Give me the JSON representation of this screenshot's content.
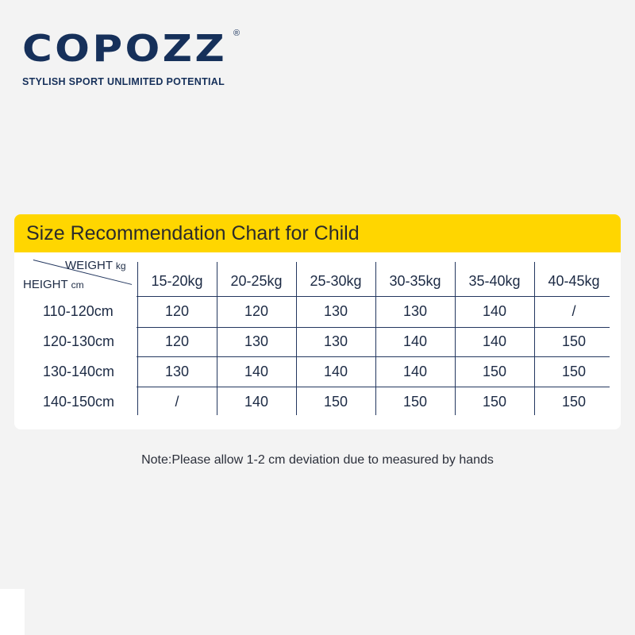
{
  "brand": {
    "name": "COPOZZ",
    "registered_mark": "®",
    "tagline": "STYLISH SPORT  UNLIMITED POTENTIAL"
  },
  "chart": {
    "title": "Size Recommendation Chart for Child",
    "corner_top_label": "WEIGHT",
    "corner_top_unit": "kg",
    "corner_left_label": "HEIGHT",
    "corner_left_unit": "cm",
    "columns": [
      "15-20kg",
      "20-25kg",
      "25-30kg",
      "30-35kg",
      "35-40kg",
      "40-45kg"
    ],
    "rows": [
      {
        "height": "110-120cm",
        "values": [
          "120",
          "120",
          "130",
          "130",
          "140",
          "/"
        ]
      },
      {
        "height": "120-130cm",
        "values": [
          "120",
          "130",
          "130",
          "140",
          "140",
          "150"
        ]
      },
      {
        "height": "130-140cm",
        "values": [
          "130",
          "140",
          "140",
          "140",
          "150",
          "150"
        ]
      },
      {
        "height": "140-150cm",
        "values": [
          "/",
          "140",
          "150",
          "150",
          "150",
          "150"
        ]
      }
    ]
  },
  "note": "Note:Please allow 1-2 cm deviation due to measured by hands",
  "colors": {
    "header_yellow": "#ffd600",
    "brand_navy": "#16305a",
    "background": "#f3f3f3",
    "card": "#ffffff"
  }
}
